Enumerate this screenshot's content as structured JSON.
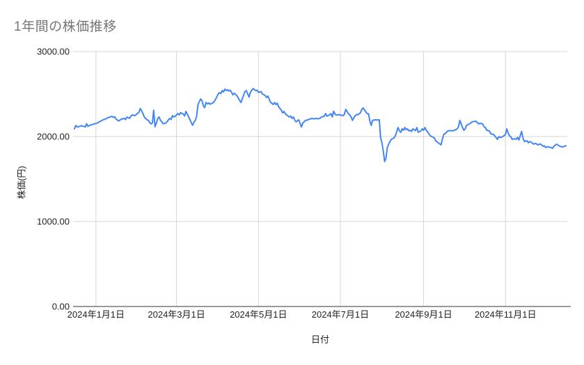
{
  "page": {
    "background": "#ffffff"
  },
  "chart_data": {
    "type": "line",
    "title": "1年間の株価推移",
    "xlabel": "日付",
    "ylabel": "株価(円)",
    "series_name": "株価",
    "line_color": "#4285f4",
    "grid_color": "#d6d6d6",
    "axis_color": "#333333",
    "title_color": "#757575",
    "label_color": "#222222",
    "ylim": [
      0,
      3000
    ],
    "xlim_days": [
      0,
      366
    ],
    "legend": "none",
    "grid": "on",
    "y_ticks": [
      {
        "value": 0,
        "label": "0.00"
      },
      {
        "value": 1000,
        "label": "1000.00"
      },
      {
        "value": 2000,
        "label": "2000.00"
      },
      {
        "value": 3000,
        "label": "3000.00"
      }
    ],
    "x_ticks": [
      {
        "day": 16,
        "label": "2024年1月1日"
      },
      {
        "day": 76,
        "label": "2024年3月1日"
      },
      {
        "day": 137,
        "label": "2024年5月1日"
      },
      {
        "day": 198,
        "label": "2024年7月1日"
      },
      {
        "day": 260,
        "label": "2024年9月1日"
      },
      {
        "day": 321,
        "label": "2024年11月1日"
      }
    ],
    "points": [
      [
        0,
        2090
      ],
      [
        1,
        2130
      ],
      [
        2,
        2112
      ],
      [
        4,
        2120
      ],
      [
        5,
        2128
      ],
      [
        7,
        2118
      ],
      [
        8,
        2113
      ],
      [
        9,
        2150
      ],
      [
        10,
        2120
      ],
      [
        12,
        2135
      ],
      [
        14,
        2145
      ],
      [
        15,
        2150
      ],
      [
        17,
        2158
      ],
      [
        18,
        2168
      ],
      [
        20,
        2185
      ],
      [
        21,
        2195
      ],
      [
        23,
        2205
      ],
      [
        24,
        2215
      ],
      [
        26,
        2228
      ],
      [
        28,
        2238
      ],
      [
        29,
        2225
      ],
      [
        30,
        2232
      ],
      [
        31,
        2205
      ],
      [
        33,
        2183
      ],
      [
        34,
        2195
      ],
      [
        35,
        2205
      ],
      [
        37,
        2213
      ],
      [
        38,
        2200
      ],
      [
        39,
        2228
      ],
      [
        41,
        2215
      ],
      [
        42,
        2240
      ],
      [
        43,
        2254
      ],
      [
        45,
        2246
      ],
      [
        46,
        2258
      ],
      [
        48,
        2285
      ],
      [
        49,
        2330
      ],
      [
        51,
        2270
      ],
      [
        52,
        2230
      ],
      [
        54,
        2197
      ],
      [
        55,
        2190
      ],
      [
        56,
        2165
      ],
      [
        57,
        2148
      ],
      [
        58,
        2160
      ],
      [
        59,
        2310
      ],
      [
        60,
        2115
      ],
      [
        61,
        2160
      ],
      [
        62,
        2213
      ],
      [
        63,
        2230
      ],
      [
        64,
        2190
      ],
      [
        65,
        2175
      ],
      [
        66,
        2150
      ],
      [
        68,
        2158
      ],
      [
        69,
        2175
      ],
      [
        70,
        2197
      ],
      [
        71,
        2213
      ],
      [
        72,
        2200
      ],
      [
        73,
        2246
      ],
      [
        74,
        2230
      ],
      [
        75,
        2238
      ],
      [
        77,
        2270
      ],
      [
        78,
        2255
      ],
      [
        79,
        2280
      ],
      [
        81,
        2265
      ],
      [
        82,
        2242
      ],
      [
        83,
        2295
      ],
      [
        85,
        2230
      ],
      [
        86,
        2200
      ],
      [
        87,
        2162
      ],
      [
        88,
        2132
      ],
      [
        89,
        2170
      ],
      [
        90,
        2190
      ],
      [
        91,
        2240
      ],
      [
        92,
        2377
      ],
      [
        94,
        2443
      ],
      [
        95,
        2420
      ],
      [
        96,
        2361
      ],
      [
        97,
        2340
      ],
      [
        98,
        2400
      ],
      [
        99,
        2385
      ],
      [
        100,
        2395
      ],
      [
        101,
        2380
      ],
      [
        103,
        2395
      ],
      [
        104,
        2410
      ],
      [
        105,
        2434
      ],
      [
        107,
        2500
      ],
      [
        108,
        2516
      ],
      [
        109,
        2505
      ],
      [
        110,
        2540
      ],
      [
        111,
        2525
      ],
      [
        112,
        2557
      ],
      [
        113,
        2540
      ],
      [
        114,
        2550
      ],
      [
        115,
        2535
      ],
      [
        116,
        2545
      ],
      [
        117,
        2520
      ],
      [
        118,
        2490
      ],
      [
        119,
        2510
      ],
      [
        121,
        2480
      ],
      [
        123,
        2425
      ],
      [
        124,
        2400
      ],
      [
        125,
        2445
      ],
      [
        127,
        2530
      ],
      [
        128,
        2540
      ],
      [
        130,
        2465
      ],
      [
        131,
        2520
      ],
      [
        133,
        2565
      ],
      [
        135,
        2540
      ],
      [
        136,
        2545
      ],
      [
        137,
        2520
      ],
      [
        139,
        2528
      ],
      [
        140,
        2500
      ],
      [
        142,
        2484
      ],
      [
        143,
        2460
      ],
      [
        144,
        2477
      ],
      [
        146,
        2405
      ],
      [
        148,
        2377
      ],
      [
        149,
        2400
      ],
      [
        150,
        2377
      ],
      [
        151,
        2393
      ],
      [
        152,
        2352
      ],
      [
        154,
        2311
      ],
      [
        155,
        2279
      ],
      [
        156,
        2295
      ],
      [
        157,
        2270
      ],
      [
        158,
        2254
      ],
      [
        160,
        2230
      ],
      [
        161,
        2240
      ],
      [
        162,
        2213
      ],
      [
        163,
        2230
      ],
      [
        164,
        2197
      ],
      [
        165,
        2172
      ],
      [
        167,
        2197
      ],
      [
        168,
        2156
      ],
      [
        169,
        2112
      ],
      [
        170,
        2156
      ],
      [
        172,
        2189
      ],
      [
        174,
        2197
      ],
      [
        175,
        2205
      ],
      [
        177,
        2213
      ],
      [
        178,
        2208
      ],
      [
        180,
        2213
      ],
      [
        181,
        2208
      ],
      [
        183,
        2215
      ],
      [
        184,
        2230
      ],
      [
        186,
        2238
      ],
      [
        187,
        2270
      ],
      [
        188,
        2240
      ],
      [
        190,
        2254
      ],
      [
        191,
        2270
      ],
      [
        192,
        2230
      ],
      [
        193,
        2298
      ],
      [
        194,
        2265
      ],
      [
        195,
        2252
      ],
      [
        197,
        2258
      ],
      [
        198,
        2254
      ],
      [
        200,
        2245
      ],
      [
        201,
        2260
      ],
      [
        202,
        2320
      ],
      [
        204,
        2270
      ],
      [
        205,
        2255
      ],
      [
        206,
        2230
      ],
      [
        207,
        2190
      ],
      [
        209,
        2245
      ],
      [
        210,
        2260
      ],
      [
        211,
        2255
      ],
      [
        213,
        2280
      ],
      [
        214,
        2320
      ],
      [
        215,
        2336
      ],
      [
        217,
        2290
      ],
      [
        218,
        2270
      ],
      [
        219,
        2268
      ],
      [
        220,
        2180
      ],
      [
        221,
        2131
      ],
      [
        222,
        2189
      ],
      [
        224,
        2197
      ],
      [
        225,
        2195
      ],
      [
        227,
        2197
      ],
      [
        228,
        1984
      ],
      [
        229,
        1926
      ],
      [
        230,
        1828
      ],
      [
        231,
        1705
      ],
      [
        232,
        1746
      ],
      [
        233,
        1869
      ],
      [
        234,
        1910
      ],
      [
        235,
        1943
      ],
      [
        236,
        1967
      ],
      [
        238,
        1984
      ],
      [
        239,
        2008
      ],
      [
        241,
        2106
      ],
      [
        242,
        2066
      ],
      [
        243,
        2049
      ],
      [
        244,
        2090
      ],
      [
        245,
        2074
      ],
      [
        246,
        2106
      ],
      [
        247,
        2080
      ],
      [
        248,
        2090
      ],
      [
        249,
        2066
      ],
      [
        250,
        2074
      ],
      [
        251,
        2060
      ],
      [
        252,
        2090
      ],
      [
        254,
        2070
      ],
      [
        255,
        2106
      ],
      [
        256,
        2050
      ],
      [
        258,
        2066
      ],
      [
        259,
        2090
      ],
      [
        260,
        2074
      ],
      [
        261,
        2106
      ],
      [
        262,
        2074
      ],
      [
        264,
        2033
      ],
      [
        265,
        2008
      ],
      [
        268,
        1984
      ],
      [
        269,
        1951
      ],
      [
        271,
        1926
      ],
      [
        273,
        1902
      ],
      [
        274,
        1967
      ],
      [
        275,
        2025
      ],
      [
        276,
        2033
      ],
      [
        277,
        2049
      ],
      [
        278,
        2066
      ],
      [
        281,
        2070
      ],
      [
        282,
        2068
      ],
      [
        283,
        2074
      ],
      [
        285,
        2090
      ],
      [
        286,
        2115
      ],
      [
        287,
        2189
      ],
      [
        288,
        2148
      ],
      [
        289,
        2106
      ],
      [
        290,
        2074
      ],
      [
        291,
        2090
      ],
      [
        292,
        2131
      ],
      [
        294,
        2148
      ],
      [
        295,
        2156
      ],
      [
        296,
        2172
      ],
      [
        298,
        2177
      ],
      [
        299,
        2180
      ],
      [
        300,
        2164
      ],
      [
        301,
        2148
      ],
      [
        302,
        2156
      ],
      [
        304,
        2148
      ],
      [
        305,
        2115
      ],
      [
        306,
        2106
      ],
      [
        307,
        2074
      ],
      [
        309,
        2066
      ],
      [
        310,
        2033
      ],
      [
        312,
        2025
      ],
      [
        313,
        2008
      ],
      [
        315,
        1967
      ],
      [
        316,
        1998
      ],
      [
        317,
        1990
      ],
      [
        318,
        1992
      ],
      [
        320,
        2010
      ],
      [
        321,
        2025
      ],
      [
        322,
        2090
      ],
      [
        323,
        2040
      ],
      [
        324,
        2010
      ],
      [
        325,
        1997
      ],
      [
        326,
        1967
      ],
      [
        328,
        1975
      ],
      [
        329,
        1967
      ],
      [
        330,
        1990
      ],
      [
        331,
        1960
      ],
      [
        332,
        2010
      ],
      [
        333,
        2060
      ],
      [
        334,
        1985
      ],
      [
        335,
        1943
      ],
      [
        337,
        1950
      ],
      [
        338,
        1926
      ],
      [
        339,
        1940
      ],
      [
        340,
        1935
      ],
      [
        342,
        1910
      ],
      [
        343,
        1920
      ],
      [
        344,
        1915
      ],
      [
        345,
        1902
      ],
      [
        347,
        1912
      ],
      [
        349,
        1885
      ],
      [
        350,
        1890
      ],
      [
        351,
        1869
      ],
      [
        352,
        1880
      ],
      [
        354,
        1875
      ],
      [
        355,
        1870
      ],
      [
        356,
        1861
      ],
      [
        357,
        1885
      ],
      [
        359,
        1910
      ],
      [
        360,
        1900
      ],
      [
        361,
        1890
      ],
      [
        363,
        1877
      ],
      [
        364,
        1880
      ],
      [
        365,
        1885
      ],
      [
        366,
        1893
      ]
    ]
  }
}
